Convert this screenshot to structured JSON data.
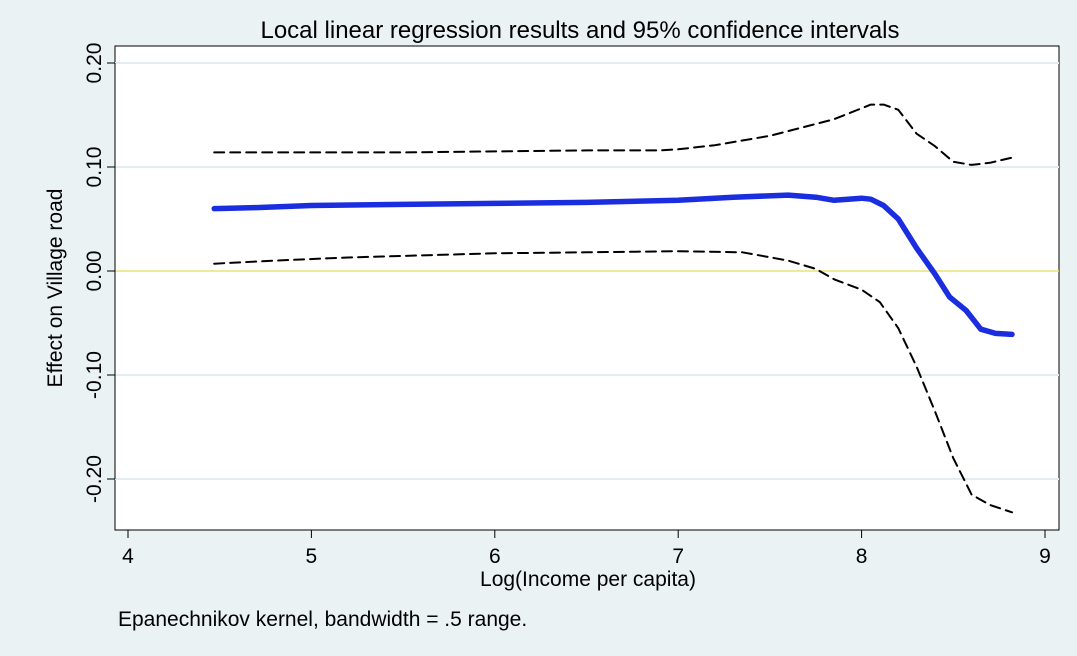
{
  "chart_data": {
    "type": "line",
    "title": "Local linear regression results and 95% confidence intervals",
    "xlabel": "Log(Income per capita)",
    "ylabel": "Effect on Village road",
    "note": "Epanechnikov kernel, bandwidth = .5 range.",
    "xlim": [
      4,
      9
    ],
    "ylim": [
      -0.25,
      0.215
    ],
    "x_ticks": [
      {
        "value": 4,
        "label": "4"
      },
      {
        "value": 5,
        "label": "5"
      },
      {
        "value": 6,
        "label": "6"
      },
      {
        "value": 7,
        "label": "7"
      },
      {
        "value": 8,
        "label": "8"
      },
      {
        "value": 9,
        "label": "9"
      }
    ],
    "y_ticks": [
      {
        "value": 0.2,
        "label": "0.20"
      },
      {
        "value": 0.1,
        "label": "0.10"
      },
      {
        "value": 0.0,
        "label": "0.00"
      },
      {
        "value": -0.1,
        "label": "-0.10"
      },
      {
        "value": -0.2,
        "label": "-0.20"
      }
    ],
    "reference_line": {
      "y": 0,
      "color": "#e8e27a"
    },
    "grid": true,
    "series": [
      {
        "style": "solid",
        "color": "#1a2ee0",
        "x": [
          4.47,
          4.7,
          5.0,
          5.5,
          6.0,
          6.5,
          7.0,
          7.3,
          7.6,
          7.75,
          7.85,
          8.0,
          8.05,
          8.12,
          8.2,
          8.3,
          8.4,
          8.48,
          8.57,
          8.65,
          8.73,
          8.82
        ],
        "y": [
          0.06,
          0.061,
          0.063,
          0.064,
          0.065,
          0.066,
          0.068,
          0.071,
          0.073,
          0.071,
          0.068,
          0.07,
          0.069,
          0.063,
          0.05,
          0.022,
          -0.003,
          -0.025,
          -0.038,
          -0.056,
          -0.06,
          -0.061
        ]
      },
      {
        "style": "dashed",
        "color": "#000000",
        "x": [
          4.47,
          5.0,
          5.5,
          6.0,
          6.5,
          6.9,
          7.0,
          7.2,
          7.5,
          7.85,
          8.05,
          8.12,
          8.2,
          8.3,
          8.4,
          8.5,
          8.6,
          8.7,
          8.82
        ],
        "y": [
          0.114,
          0.114,
          0.114,
          0.115,
          0.116,
          0.116,
          0.117,
          0.121,
          0.13,
          0.146,
          0.16,
          0.16,
          0.155,
          0.132,
          0.12,
          0.105,
          0.102,
          0.104,
          0.109
        ]
      },
      {
        "style": "dashed",
        "color": "#000000",
        "x": [
          4.47,
          4.8,
          5.2,
          5.6,
          6.0,
          6.5,
          7.0,
          7.35,
          7.6,
          7.75,
          7.85,
          8.0,
          8.1,
          8.2,
          8.3,
          8.4,
          8.5,
          8.6,
          8.7,
          8.82
        ],
        "y": [
          0.007,
          0.01,
          0.013,
          0.015,
          0.017,
          0.018,
          0.019,
          0.018,
          0.01,
          0.002,
          -0.008,
          -0.018,
          -0.03,
          -0.055,
          -0.092,
          -0.135,
          -0.18,
          -0.215,
          -0.225,
          -0.232
        ]
      }
    ]
  }
}
